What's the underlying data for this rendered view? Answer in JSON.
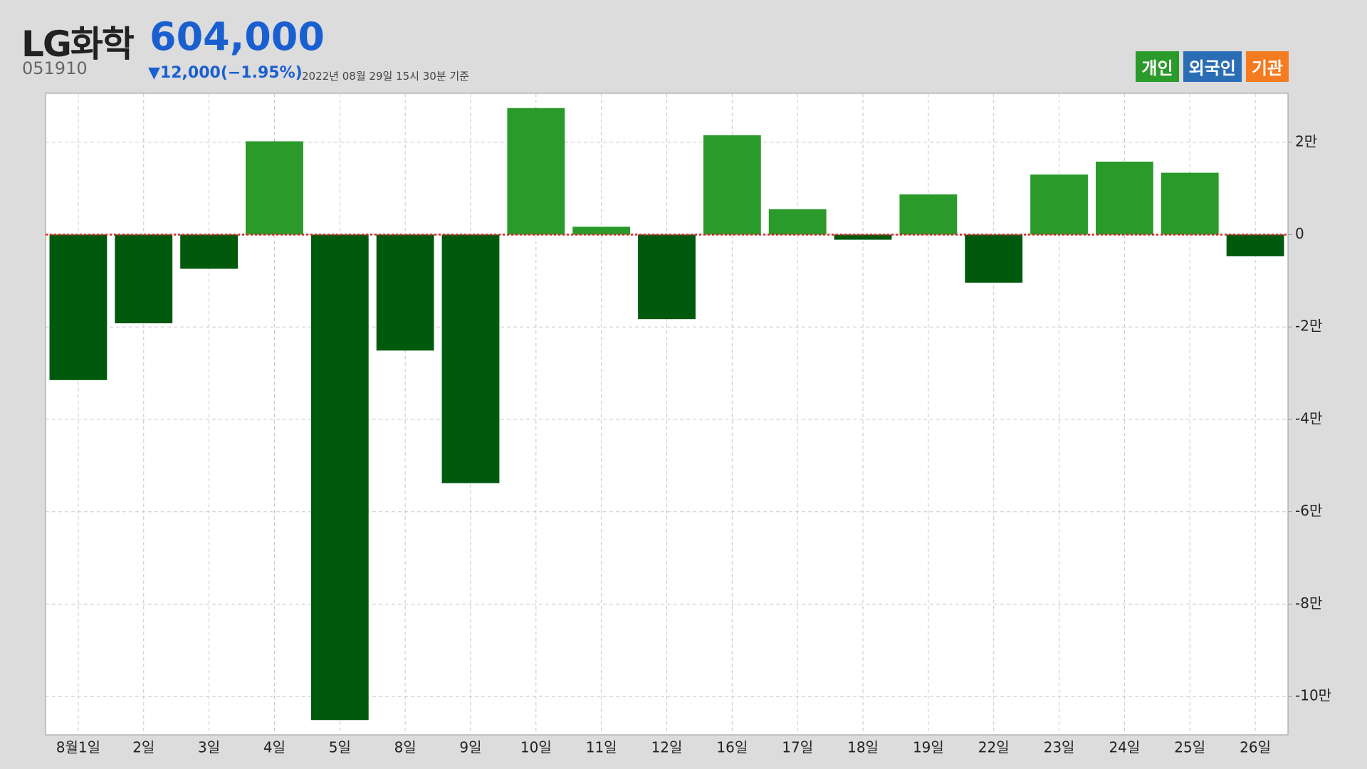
{
  "header": {
    "title": "LG화학",
    "price": "604,000",
    "code": "051910",
    "change": "▼12,000(−1.95%)",
    "date": "2022년 08월 29일 15시 30분 기준"
  },
  "legend": [
    {
      "label": "개인",
      "color": "#2a9a2a"
    },
    {
      "label": "외국인",
      "color": "#2a6db5"
    },
    {
      "label": "기관",
      "color": "#f47b20"
    }
  ],
  "chart_data": {
    "type": "bar",
    "categories": [
      "8월1일",
      "2일",
      "3일",
      "4일",
      "5일",
      "8일",
      "9일",
      "10일",
      "11일",
      "12일",
      "16일",
      "17일",
      "18일",
      "19일",
      "22일",
      "23일",
      "24일",
      "25일",
      "26일"
    ],
    "values": [
      -31500,
      -19200,
      -7400,
      20200,
      -105100,
      -25100,
      -53800,
      27400,
      1700,
      -18300,
      21500,
      5500,
      -1100,
      8700,
      -10400,
      13000,
      15800,
      13400,
      -4700
    ],
    "positive_color": "#2a9a2a",
    "negative_color": "#005a0e",
    "zero_line_color": "#e02020",
    "ylim": [
      -108300,
      30600
    ],
    "yticks": [
      {
        "value": 20000,
        "label": "2만"
      },
      0,
      {
        "value": -20000,
        "label": "-2만"
      },
      {
        "value": -40000,
        "label": "-4만"
      },
      {
        "value": -60000,
        "label": "-6만"
      },
      {
        "value": -80000,
        "label": "-8만"
      },
      {
        "value": -100000,
        "label": "-10만"
      }
    ],
    "grid": true
  }
}
